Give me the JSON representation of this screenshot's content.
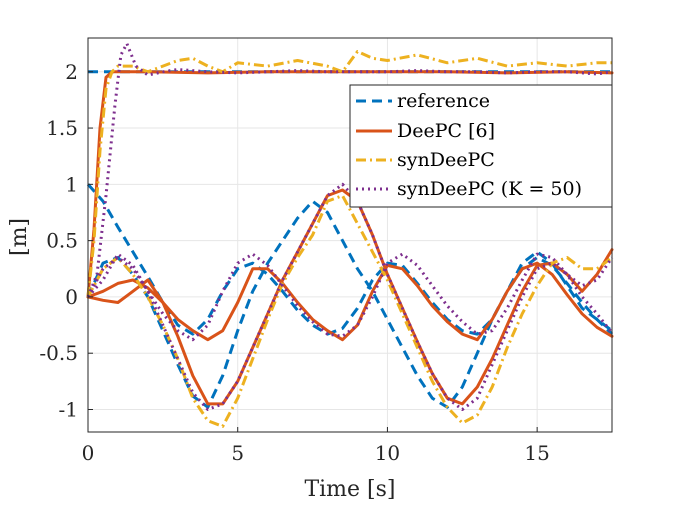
{
  "chart_data": {
    "type": "line",
    "xlabel": "Time [s]",
    "ylabel": "[m]",
    "xlim": [
      0,
      17.5
    ],
    "ylim": [
      -1.2,
      2.3
    ],
    "xticks": [
      0,
      5,
      10,
      15
    ],
    "yticks": [
      2,
      1.5,
      1,
      0.5,
      0,
      -0.5,
      -1
    ],
    "xtick_labels": [
      "0",
      "5",
      "10",
      "15"
    ],
    "ytick_labels": [
      "2",
      "1.5",
      "1",
      "0.5",
      "0",
      "-0.5",
      "-1"
    ],
    "grid": true,
    "legend_position": "upper-right",
    "legend": [
      "reference",
      "DeePC [6]",
      "synDeePC",
      "synDeePC (K = 50)"
    ],
    "series": [
      {
        "name": "reference",
        "color": "#0072BD",
        "dash": "dashed",
        "x": [
          0,
          0.1,
          17.5
        ],
        "y": [
          2,
          2,
          2
        ]
      },
      {
        "name": "reference",
        "color": "#0072BD",
        "dash": "dashed",
        "x": [
          0,
          0.5,
          1,
          1.5,
          2,
          2.5,
          3,
          3.5,
          4,
          4.5,
          5,
          5.5,
          6,
          6.5,
          7,
          7.5,
          8,
          8.5,
          9,
          9.5,
          10,
          10.5,
          11,
          11.5,
          12,
          12.5,
          13,
          13.5,
          14,
          14.5,
          15,
          15.5,
          16,
          16.5,
          17,
          17.5
        ],
        "y": [
          1.0,
          0.85,
          0.62,
          0.4,
          0.18,
          -0.05,
          -0.25,
          -0.33,
          -0.2,
          0.05,
          0.25,
          0.3,
          0.2,
          0.05,
          -0.12,
          -0.25,
          -0.33,
          -0.28,
          -0.1,
          0.15,
          0.3,
          0.28,
          0.12,
          -0.05,
          -0.2,
          -0.3,
          -0.33,
          -0.2,
          0.05,
          0.25,
          0.35,
          0.28,
          0.12,
          -0.05,
          -0.2,
          -0.33
        ]
      },
      {
        "name": "reference",
        "color": "#0072BD",
        "dash": "dashed",
        "x": [
          0,
          0.5,
          1,
          1.5,
          2,
          2.5,
          3,
          3.5,
          4,
          4.5,
          5,
          5.5,
          6,
          6.5,
          7,
          7.5,
          8,
          8.5,
          9,
          9.5,
          10,
          10.5,
          11,
          11.5,
          12,
          12.5,
          13,
          13.5,
          14,
          14.5,
          15,
          15.5,
          16,
          16.5,
          17,
          17.5
        ],
        "y": [
          0,
          0.3,
          0.35,
          0.2,
          0.0,
          -0.3,
          -0.6,
          -0.88,
          -0.98,
          -0.7,
          -0.3,
          0.05,
          0.3,
          0.5,
          0.7,
          0.85,
          0.75,
          0.5,
          0.25,
          0.05,
          -0.2,
          -0.45,
          -0.7,
          -0.9,
          -0.98,
          -0.8,
          -0.5,
          -0.2,
          0.05,
          0.3,
          0.4,
          0.3,
          0.1,
          -0.1,
          -0.2,
          -0.3
        ]
      },
      {
        "name": "DeePC [6]",
        "color": "#D95319",
        "dash": "solid",
        "x": [
          0,
          0.2,
          0.4,
          0.6,
          0.8,
          1.0,
          2,
          4,
          6,
          8,
          10,
          12,
          14,
          16,
          17.5
        ],
        "y": [
          0,
          0.6,
          1.5,
          1.95,
          2.0,
          2.0,
          2.0,
          1.99,
          2.0,
          2.0,
          2.0,
          2.0,
          1.99,
          2.0,
          1.99
        ]
      },
      {
        "name": "DeePC [6]",
        "color": "#D95319",
        "dash": "solid",
        "x": [
          0,
          0.5,
          1,
          1.5,
          2,
          2.5,
          3,
          3.5,
          4,
          4.5,
          5,
          5.5,
          6,
          6.5,
          7,
          7.5,
          8,
          8.5,
          9,
          9.5,
          10,
          10.5,
          11,
          11.5,
          12,
          12.5,
          13,
          13.5,
          14,
          14.5,
          15,
          15.5,
          16,
          16.5,
          17,
          17.5
        ],
        "y": [
          0,
          0.05,
          0.12,
          0.15,
          0.08,
          -0.05,
          -0.2,
          -0.3,
          -0.38,
          -0.3,
          -0.05,
          0.25,
          0.25,
          0.12,
          -0.05,
          -0.2,
          -0.3,
          -0.38,
          -0.25,
          0.05,
          0.28,
          0.25,
          0.1,
          -0.08,
          -0.22,
          -0.33,
          -0.38,
          -0.2,
          0.05,
          0.25,
          0.3,
          0.2,
          0.02,
          -0.15,
          -0.27,
          -0.35
        ]
      },
      {
        "name": "DeePC [6]",
        "color": "#D95319",
        "dash": "solid",
        "x": [
          0,
          0.5,
          1,
          1.5,
          2,
          2.5,
          3,
          3.5,
          4,
          4.5,
          5,
          5.5,
          6,
          6.5,
          7,
          7.5,
          8,
          8.5,
          9,
          9.5,
          10,
          10.5,
          11,
          11.5,
          12,
          12.5,
          13,
          13.5,
          14,
          14.5,
          15,
          15.5,
          16,
          16.5,
          17,
          17.5
        ],
        "y": [
          0,
          -0.03,
          -0.05,
          0.05,
          0.15,
          -0.05,
          -0.35,
          -0.7,
          -0.95,
          -0.95,
          -0.75,
          -0.45,
          -0.15,
          0.15,
          0.4,
          0.65,
          0.9,
          0.95,
          0.85,
          0.55,
          0.2,
          -0.1,
          -0.4,
          -0.68,
          -0.9,
          -0.95,
          -0.8,
          -0.55,
          -0.25,
          0.05,
          0.28,
          0.3,
          0.2,
          0.05,
          0.2,
          0.42
        ]
      },
      {
        "name": "synDeePC",
        "color": "#EDB120",
        "dash": "dashdot",
        "x": [
          0,
          0.2,
          0.4,
          0.6,
          0.8,
          1.0,
          1.5,
          2,
          2.5,
          3,
          3.5,
          4,
          4.5,
          5,
          6,
          7,
          8,
          8.5,
          9,
          9.5,
          10,
          11,
          12,
          13,
          14,
          15,
          16,
          17,
          17.5
        ],
        "y": [
          0,
          0.5,
          1.3,
          1.85,
          2.0,
          2.05,
          2.05,
          2.0,
          2.05,
          2.1,
          2.12,
          2.05,
          2.0,
          2.08,
          2.05,
          2.1,
          2.05,
          2.0,
          2.18,
          2.12,
          2.1,
          2.15,
          2.08,
          2.12,
          2.05,
          2.08,
          2.05,
          2.08,
          2.08
        ]
      },
      {
        "name": "synDeePC",
        "color": "#EDB120",
        "dash": "dashdot",
        "x": [
          0,
          0.5,
          1,
          1.5,
          2,
          2.5,
          3,
          3.5,
          4,
          4.5,
          5,
          5.5,
          6,
          6.5,
          7,
          7.5,
          8,
          8.5,
          9,
          9.5,
          10,
          10.5,
          11,
          11.5,
          12,
          12.5,
          13,
          13.5,
          14,
          14.5,
          15,
          15.5,
          16,
          16.5,
          17,
          17.5
        ],
        "y": [
          0,
          0.25,
          0.35,
          0.2,
          0.0,
          -0.25,
          -0.55,
          -0.9,
          -1.1,
          -1.15,
          -0.9,
          -0.55,
          -0.2,
          0.12,
          0.35,
          0.55,
          0.85,
          0.9,
          0.65,
          0.4,
          0.15,
          -0.15,
          -0.45,
          -0.75,
          -0.98,
          -1.12,
          -1.05,
          -0.8,
          -0.45,
          -0.15,
          0.1,
          0.3,
          0.35,
          0.25,
          0.25,
          0.35
        ]
      },
      {
        "name": "synDeePC (K = 50)",
        "color": "#7E2F8E",
        "dash": "dotted",
        "x": [
          0,
          0.3,
          0.6,
          0.9,
          1.1,
          1.3,
          1.6,
          2,
          2.5,
          3,
          4,
          5,
          6,
          7,
          8,
          9,
          10,
          11,
          12,
          13,
          14,
          15,
          16,
          17,
          17.5
        ],
        "y": [
          0,
          0.2,
          0.9,
          1.7,
          2.15,
          2.25,
          2.05,
          1.97,
          2.0,
          2.02,
          2.0,
          1.99,
          2.0,
          2.01,
          2.0,
          2.0,
          2.0,
          2.01,
          2.0,
          2.0,
          1.99,
          2.0,
          2.0,
          1.98,
          2.0
        ]
      },
      {
        "name": "synDeePC (K = 50)",
        "color": "#7E2F8E",
        "dash": "dotted",
        "x": [
          0,
          0.5,
          1,
          1.5,
          2,
          2.5,
          3,
          3.5,
          4,
          4.5,
          5,
          5.5,
          6,
          6.5,
          7,
          7.5,
          8,
          8.5,
          9,
          9.5,
          10,
          10.5,
          11,
          11.5,
          12,
          12.5,
          13,
          13.5,
          14,
          14.5,
          15,
          15.5,
          16,
          16.5,
          17,
          17.5
        ],
        "y": [
          0,
          0.15,
          0.38,
          0.28,
          0.05,
          -0.15,
          -0.3,
          -0.38,
          -0.25,
          0.05,
          0.3,
          0.38,
          0.28,
          0.1,
          -0.08,
          -0.22,
          -0.33,
          -0.35,
          -0.25,
          0.0,
          0.3,
          0.38,
          0.28,
          0.1,
          -0.08,
          -0.22,
          -0.33,
          -0.3,
          -0.1,
          0.15,
          0.38,
          0.35,
          0.2,
          0.0,
          -0.15,
          -0.32
        ]
      },
      {
        "name": "synDeePC (K = 50)",
        "color": "#7E2F8E",
        "dash": "dotted",
        "x": [
          0,
          0.5,
          1,
          1.5,
          2,
          2.5,
          3,
          3.5,
          4,
          4.5,
          5,
          5.5,
          6,
          6.5,
          7,
          7.5,
          8,
          8.5,
          9,
          9.5,
          10,
          10.5,
          11,
          11.5,
          12,
          12.5,
          13,
          13.5,
          14,
          14.5,
          15,
          15.5,
          16,
          16.5,
          17,
          17.5
        ],
        "y": [
          0,
          0.25,
          0.35,
          0.25,
          0.05,
          -0.25,
          -0.55,
          -0.85,
          -1.0,
          -0.95,
          -0.75,
          -0.45,
          -0.15,
          0.15,
          0.4,
          0.65,
          0.9,
          1.0,
          0.85,
          0.55,
          0.2,
          -0.1,
          -0.4,
          -0.68,
          -0.9,
          -1.0,
          -0.9,
          -0.6,
          -0.3,
          0.0,
          0.25,
          0.3,
          0.2,
          0.1,
          0.15,
          0.35
        ]
      }
    ]
  }
}
